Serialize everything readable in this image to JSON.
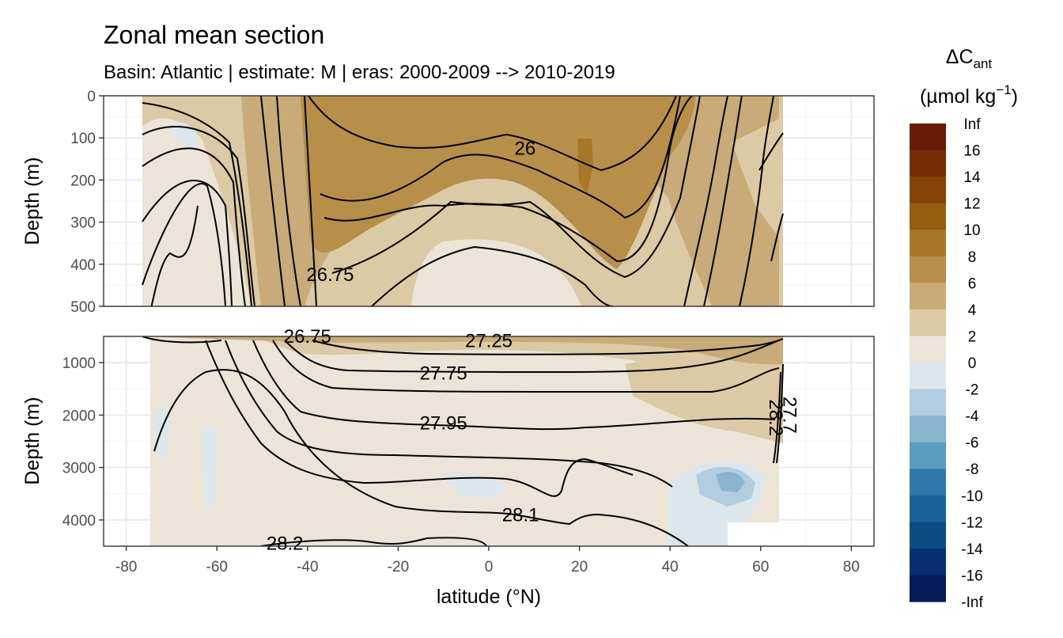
{
  "chart_data": {
    "type": "heatmap",
    "title": "Zonal mean section",
    "subtitle": "Basin: Atlantic | estimate: M  | eras: 2000-2009 --> 2010-2019",
    "xlabel": "latitude (°N)",
    "ylabel": "Depth (m)",
    "xlim": [
      -85,
      85
    ],
    "x_ticks": [
      "-80",
      "-60",
      "-40",
      "-20",
      "0",
      "20",
      "40",
      "60",
      "80"
    ],
    "grid": true,
    "panels": [
      {
        "name": "upper",
        "ylim": [
          0,
          500
        ],
        "y_ticks": [
          "0",
          "100",
          "200",
          "300",
          "400",
          "500"
        ],
        "contour_labels": [
          {
            "text": "26",
            "lat": 8,
            "depth": 125
          },
          {
            "text": "26.75",
            "lat": -35,
            "depth": 425
          }
        ]
      },
      {
        "name": "lower",
        "ylim": [
          500,
          4500
        ],
        "y_ticks": [
          "1000",
          "2000",
          "3000",
          "4000"
        ],
        "contour_labels": [
          {
            "text": "26.75",
            "lat": -40,
            "depth": 500
          },
          {
            "text": "27.25",
            "lat": 0,
            "depth": 580
          },
          {
            "text": "27.75",
            "lat": -10,
            "depth": 1200
          },
          {
            "text": "27.95",
            "lat": -10,
            "depth": 2150
          },
          {
            "text": "28.1",
            "lat": 7,
            "depth": 3900
          },
          {
            "text": "28.2",
            "lat": -45,
            "depth": 4450
          },
          {
            "text": "28.2",
            "lat": 63,
            "depth": 2050
          },
          {
            "text": "27.7",
            "lat": 64,
            "depth": 2000
          }
        ]
      }
    ],
    "legend": {
      "title_main": "ΔC",
      "title_sub": "ant",
      "unit_text": "(µmol kg",
      "unit_sup": "−1",
      "unit_close": ")",
      "placement": "right",
      "breaks": [
        "Inf",
        "16",
        "14",
        "12",
        "10",
        "8",
        "6",
        "4",
        "2",
        "0",
        "-2",
        "-4",
        "-6",
        "-8",
        "-10",
        "-12",
        "-14",
        "-16",
        "-Inf"
      ],
      "colors": [
        "#6b1a05",
        "#792d06",
        "#874307",
        "#955e0f",
        "#a8772a",
        "#b78f49",
        "#c8ab78",
        "#dcc9a5",
        "#ebe4d7",
        "#dce7ed",
        "#b2cde0",
        "#89b5cf",
        "#5c9bc0",
        "#2d79ae",
        "#17629c",
        "#0f4b87",
        "#082f75",
        "#061b5c"
      ]
    }
  }
}
